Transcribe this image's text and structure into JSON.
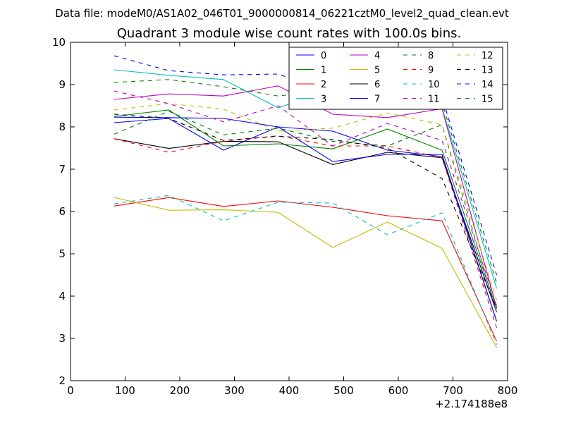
{
  "figure": {
    "suptitle": "Data file: modeM0/AS1A02_046T01_9000000814_06221cztM0_level2_quad_clean.evt"
  },
  "chart_data": {
    "type": "line",
    "title": "Quadrant 3 module wise count rates with 100.0s bins.",
    "xlabel": "",
    "ylabel": "",
    "x_offset_label": "+2.174188e8",
    "xlim": [
      0,
      800
    ],
    "ylim": [
      2,
      10
    ],
    "x_ticks": [
      "0",
      "100",
      "200",
      "300",
      "400",
      "500",
      "600",
      "700",
      "800"
    ],
    "y_ticks": [
      "2",
      "3",
      "4",
      "5",
      "6",
      "7",
      "8",
      "9",
      "10"
    ],
    "grid": false,
    "legend_position": "top-right",
    "x": [
      80,
      180,
      280,
      380,
      480,
      580,
      680,
      780
    ],
    "series": [
      {
        "name": "0",
        "color": "#0000ff",
        "style": "solid",
        "values": [
          8.1,
          8.2,
          7.45,
          8.0,
          7.9,
          7.45,
          7.3,
          3.4
        ]
      },
      {
        "name": "1",
        "color": "#008000",
        "style": "solid",
        "values": [
          8.25,
          8.4,
          7.55,
          7.6,
          7.48,
          7.95,
          7.45,
          3.7
        ]
      },
      {
        "name": "2",
        "color": "#ff0000",
        "style": "solid",
        "values": [
          6.13,
          6.33,
          6.12,
          6.25,
          6.1,
          5.9,
          5.78,
          2.93
        ]
      },
      {
        "name": "3",
        "color": "#00bfbf",
        "style": "solid",
        "values": [
          9.35,
          9.22,
          9.12,
          8.45,
          8.9,
          8.42,
          8.45,
          4.18
        ]
      },
      {
        "name": "4",
        "color": "#bf00bf",
        "style": "solid",
        "values": [
          8.65,
          8.78,
          8.73,
          8.97,
          8.3,
          8.22,
          8.43,
          3.72
        ]
      },
      {
        "name": "5",
        "color": "#bfbf00",
        "style": "solid",
        "values": [
          6.33,
          6.03,
          6.04,
          5.98,
          5.15,
          5.75,
          5.13,
          2.78
        ]
      },
      {
        "name": "6",
        "color": "#000000",
        "style": "solid",
        "values": [
          7.72,
          7.49,
          7.66,
          7.65,
          7.11,
          7.4,
          7.27,
          3.62
        ]
      },
      {
        "name": "7",
        "color": "#0000ff",
        "style": "solid",
        "values": [
          8.23,
          8.22,
          8.2,
          8.0,
          7.18,
          7.35,
          7.35,
          3.4
        ]
      },
      {
        "name": "8",
        "color": "#008000",
        "style": "dashed",
        "values": [
          7.83,
          8.37,
          7.81,
          7.97,
          7.66,
          7.55,
          8.05,
          3.6
        ]
      },
      {
        "name": "9",
        "color": "#ff0000",
        "style": "dashed",
        "values": [
          7.72,
          7.4,
          7.66,
          7.79,
          7.55,
          7.55,
          7.27,
          3.25
        ]
      },
      {
        "name": "10",
        "color": "#00bfbf",
        "style": "dashed",
        "values": [
          6.18,
          6.38,
          5.78,
          6.22,
          6.2,
          5.45,
          5.97,
          2.85
        ]
      },
      {
        "name": "11",
        "color": "#bf00bf",
        "style": "dashed",
        "values": [
          8.85,
          8.55,
          8.12,
          8.5,
          7.55,
          8.08,
          7.68,
          3.77
        ]
      },
      {
        "name": "12",
        "color": "#bfbf00",
        "style": "dashed",
        "values": [
          8.4,
          8.55,
          8.42,
          7.9,
          7.97,
          8.33,
          8.05,
          3.9
        ]
      },
      {
        "name": "13",
        "color": "#000000",
        "style": "dashed",
        "values": [
          8.3,
          8.2,
          7.68,
          7.78,
          7.7,
          7.5,
          6.78,
          3.7
        ]
      },
      {
        "name": "14",
        "color": "#0000ff",
        "style": "dashed",
        "values": [
          9.68,
          9.33,
          9.23,
          9.25,
          8.78,
          8.65,
          8.7,
          4.5
        ]
      },
      {
        "name": "15",
        "color": "#008000",
        "style": "dashed",
        "values": [
          9.05,
          9.12,
          8.95,
          8.73,
          8.88,
          9.02,
          8.57,
          4.3
        ]
      }
    ]
  }
}
